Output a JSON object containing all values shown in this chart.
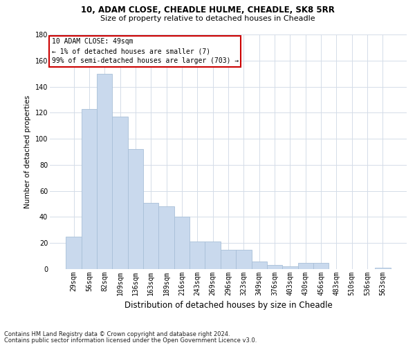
{
  "title_line1": "10, ADAM CLOSE, CHEADLE HULME, CHEADLE, SK8 5RR",
  "title_line2": "Size of property relative to detached houses in Cheadle",
  "xlabel": "Distribution of detached houses by size in Cheadle",
  "ylabel": "Number of detached properties",
  "categories": [
    "29sqm",
    "56sqm",
    "82sqm",
    "109sqm",
    "136sqm",
    "163sqm",
    "189sqm",
    "216sqm",
    "243sqm",
    "269sqm",
    "296sqm",
    "323sqm",
    "349sqm",
    "376sqm",
    "403sqm",
    "430sqm",
    "456sqm",
    "483sqm",
    "510sqm",
    "536sqm",
    "563sqm"
  ],
  "values": [
    25,
    123,
    150,
    117,
    92,
    51,
    48,
    40,
    21,
    21,
    15,
    15,
    6,
    3,
    2,
    5,
    5,
    0,
    0,
    0,
    1
  ],
  "bar_color": "#c9d9ed",
  "bar_edge_color": "#a8bfd8",
  "ylim": [
    0,
    180
  ],
  "yticks": [
    0,
    20,
    40,
    60,
    80,
    100,
    120,
    140,
    160,
    180
  ],
  "annotation_text": "10 ADAM CLOSE: 49sqm\n← 1% of detached houses are smaller (7)\n99% of semi-detached houses are larger (703) →",
  "annotation_box_color": "#ffffff",
  "annotation_box_edge_color": "#cc0000",
  "footnote_line1": "Contains HM Land Registry data © Crown copyright and database right 2024.",
  "footnote_line2": "Contains public sector information licensed under the Open Government Licence v3.0.",
  "grid_color": "#d4dce8",
  "background_color": "#ffffff",
  "title1_fontsize": 8.5,
  "title2_fontsize": 8.0,
  "ylabel_fontsize": 7.5,
  "xlabel_fontsize": 8.5,
  "tick_fontsize": 7.0,
  "annot_fontsize": 7.0,
  "footnote_fontsize": 6.0
}
